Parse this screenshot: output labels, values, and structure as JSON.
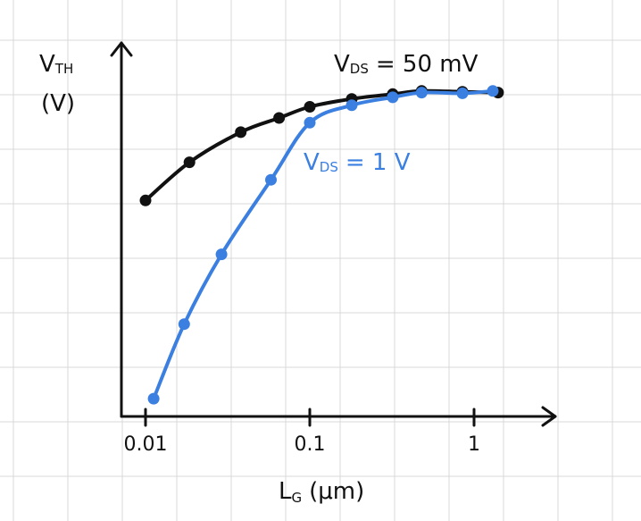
{
  "chart_data": {
    "type": "line",
    "x_scale": "log",
    "xlim": [
      0.01,
      1
    ],
    "grid": true,
    "xlabel": {
      "main": "L",
      "sub": "G",
      "unit": "(μm)"
    },
    "ylabel": {
      "main": "V",
      "sub": "TH",
      "unit": "(V)"
    },
    "x_ticks": [
      {
        "value": 0.01,
        "label": "0.01"
      },
      {
        "value": 0.1,
        "label": "0.1"
      },
      {
        "value": 1,
        "label": "1"
      }
    ],
    "series": [
      {
        "name": "V_DS = 50 mV",
        "label_parts": {
          "main": "V",
          "sub": "DS",
          "rest": "= 50 mV"
        },
        "color": "#111111",
        "points": [
          {
            "x": 0.01,
            "y": 0.3
          },
          {
            "x": 0.0185,
            "y": 0.54
          },
          {
            "x": 0.038,
            "y": 0.73
          },
          {
            "x": 0.065,
            "y": 0.82
          },
          {
            "x": 0.1,
            "y": 0.89
          },
          {
            "x": 0.18,
            "y": 0.94
          },
          {
            "x": 0.32,
            "y": 0.97
          },
          {
            "x": 0.48,
            "y": 0.99
          },
          {
            "x": 0.85,
            "y": 0.985
          },
          {
            "x": 1.4,
            "y": 0.98
          }
        ]
      },
      {
        "name": "V_DS = 1 V",
        "label_parts": {
          "main": "V",
          "sub": "DS",
          "rest": "= 1 V"
        },
        "color": "#3b7fe0",
        "points": [
          {
            "x": 0.0112,
            "y": -0.95
          },
          {
            "x": 0.0172,
            "y": -0.48
          },
          {
            "x": 0.029,
            "y": -0.04
          },
          {
            "x": 0.058,
            "y": 0.43
          },
          {
            "x": 0.1,
            "y": 0.79
          },
          {
            "x": 0.18,
            "y": 0.9
          },
          {
            "x": 0.32,
            "y": 0.95
          },
          {
            "x": 0.48,
            "y": 0.98
          },
          {
            "x": 0.85,
            "y": 0.975
          },
          {
            "x": 1.3,
            "y": 0.99
          }
        ]
      }
    ]
  }
}
